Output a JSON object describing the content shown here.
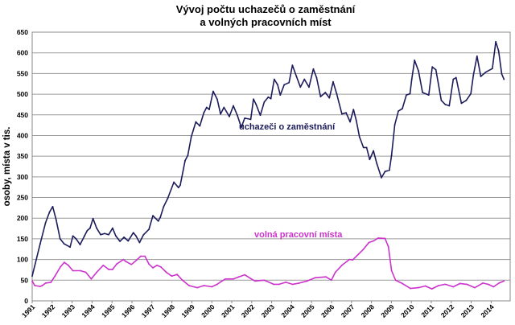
{
  "chart_data": {
    "type": "line",
    "title": [
      "Vývoj počtu uchazečů o zaměstnání",
      "a volných pracovních míst"
    ],
    "xlabel": "",
    "ylabel": "osoby, místa v tis.",
    "ylim": [
      0,
      650
    ],
    "yticks": [
      0,
      50,
      100,
      150,
      200,
      250,
      300,
      350,
      400,
      450,
      500,
      550,
      600,
      650
    ],
    "xticks": [
      "1991",
      "1992",
      "1993",
      "1994",
      "1995",
      "1996",
      "1997",
      "1998",
      "1999",
      "2000",
      "2001",
      "2002",
      "2003",
      "2004",
      "2005",
      "2006",
      "2007",
      "2008",
      "2009",
      "2010",
      "2011",
      "2012",
      "2013",
      "2014"
    ],
    "grid": "horizontal",
    "legend": "inline labels",
    "series": [
      {
        "name": "uchazeči o zaměstnání",
        "color": "#1c1c5c",
        "points": [
          [
            1991.0,
            60
          ],
          [
            1991.4,
            138
          ],
          [
            1991.67,
            189
          ],
          [
            1991.87,
            215
          ],
          [
            1992.03,
            228
          ],
          [
            1992.2,
            196
          ],
          [
            1992.4,
            150
          ],
          [
            1992.6,
            138
          ],
          [
            1992.9,
            130
          ],
          [
            1993.04,
            157
          ],
          [
            1993.2,
            150
          ],
          [
            1993.4,
            136
          ],
          [
            1993.62,
            157
          ],
          [
            1993.76,
            170
          ],
          [
            1993.9,
            176
          ],
          [
            1994.05,
            199
          ],
          [
            1994.23,
            176
          ],
          [
            1994.43,
            160
          ],
          [
            1994.63,
            163
          ],
          [
            1994.83,
            160
          ],
          [
            1995.03,
            176
          ],
          [
            1995.19,
            157
          ],
          [
            1995.4,
            144
          ],
          [
            1995.6,
            154
          ],
          [
            1995.81,
            145
          ],
          [
            1996.07,
            165
          ],
          [
            1996.2,
            157
          ],
          [
            1996.38,
            141
          ],
          [
            1996.58,
            160
          ],
          [
            1996.85,
            173
          ],
          [
            1997.05,
            206
          ],
          [
            1997.32,
            193
          ],
          [
            1997.42,
            202
          ],
          [
            1997.59,
            228
          ],
          [
            1997.79,
            248
          ],
          [
            1998.1,
            287
          ],
          [
            1998.33,
            274
          ],
          [
            1998.42,
            280
          ],
          [
            1998.66,
            339
          ],
          [
            1998.8,
            352
          ],
          [
            1998.97,
            397
          ],
          [
            1999.2,
            433
          ],
          [
            1999.4,
            423
          ],
          [
            1999.6,
            455
          ],
          [
            1999.74,
            468
          ],
          [
            1999.87,
            463
          ],
          [
            2000.07,
            507
          ],
          [
            2000.27,
            488
          ],
          [
            2000.44,
            452
          ],
          [
            2000.61,
            468
          ],
          [
            2000.88,
            446
          ],
          [
            2001.08,
            472
          ],
          [
            2001.28,
            449
          ],
          [
            2001.48,
            420
          ],
          [
            2001.65,
            442
          ],
          [
            2001.95,
            439
          ],
          [
            2002.09,
            488
          ],
          [
            2002.22,
            475
          ],
          [
            2002.43,
            449
          ],
          [
            2002.63,
            481
          ],
          [
            2002.83,
            493
          ],
          [
            2002.96,
            489
          ],
          [
            2003.13,
            536
          ],
          [
            2003.3,
            523
          ],
          [
            2003.43,
            498
          ],
          [
            2003.63,
            523
          ],
          [
            2003.87,
            528
          ],
          [
            2004.04,
            570
          ],
          [
            2004.24,
            543
          ],
          [
            2004.44,
            517
          ],
          [
            2004.64,
            536
          ],
          [
            2004.87,
            517
          ],
          [
            2005.09,
            561
          ],
          [
            2005.25,
            540
          ],
          [
            2005.45,
            494
          ],
          [
            2005.69,
            504
          ],
          [
            2005.89,
            491
          ],
          [
            2006.08,
            530
          ],
          [
            2006.26,
            501
          ],
          [
            2006.52,
            452
          ],
          [
            2006.73,
            455
          ],
          [
            2006.93,
            433
          ],
          [
            2007.1,
            463
          ],
          [
            2007.24,
            436
          ],
          [
            2007.4,
            397
          ],
          [
            2007.6,
            371
          ],
          [
            2007.76,
            371
          ],
          [
            2007.91,
            342
          ],
          [
            2008.1,
            363
          ],
          [
            2008.27,
            332
          ],
          [
            2008.5,
            298
          ],
          [
            2008.68,
            313
          ],
          [
            2008.9,
            316
          ],
          [
            2009.01,
            352
          ],
          [
            2009.17,
            426
          ],
          [
            2009.35,
            459
          ],
          [
            2009.55,
            465
          ],
          [
            2009.75,
            498
          ],
          [
            2009.93,
            501
          ],
          [
            2010.02,
            536
          ],
          [
            2010.16,
            582
          ],
          [
            2010.36,
            556
          ],
          [
            2010.56,
            504
          ],
          [
            2010.87,
            498
          ],
          [
            2011.05,
            566
          ],
          [
            2011.23,
            559
          ],
          [
            2011.5,
            485
          ],
          [
            2011.7,
            475
          ],
          [
            2011.9,
            472
          ],
          [
            2012.1,
            536
          ],
          [
            2012.24,
            540
          ],
          [
            2012.51,
            478
          ],
          [
            2012.75,
            485
          ],
          [
            2012.98,
            501
          ],
          [
            2013.11,
            546
          ],
          [
            2013.29,
            592
          ],
          [
            2013.48,
            543
          ],
          [
            2013.72,
            553
          ],
          [
            2014.06,
            562
          ],
          [
            2014.23,
            627
          ],
          [
            2014.37,
            605
          ],
          [
            2014.53,
            549
          ],
          [
            2014.64,
            536
          ]
        ]
      },
      {
        "name": "volná pracovní místa",
        "color": "#cc33cc",
        "points": [
          [
            1991.0,
            48
          ],
          [
            1991.13,
            37
          ],
          [
            1991.4,
            35
          ],
          [
            1991.51,
            37
          ],
          [
            1991.67,
            43
          ],
          [
            1991.94,
            45
          ],
          [
            1992.14,
            60
          ],
          [
            1992.41,
            82
          ],
          [
            1992.61,
            93
          ],
          [
            1992.81,
            86
          ],
          [
            1993.04,
            73
          ],
          [
            1993.42,
            73
          ],
          [
            1993.69,
            69
          ],
          [
            1993.96,
            53
          ],
          [
            1994.23,
            69
          ],
          [
            1994.56,
            86
          ],
          [
            1994.83,
            76
          ],
          [
            1995.03,
            76
          ],
          [
            1995.23,
            89
          ],
          [
            1995.57,
            100
          ],
          [
            1995.7,
            95
          ],
          [
            1995.97,
            88
          ],
          [
            1996.24,
            99
          ],
          [
            1996.44,
            108
          ],
          [
            1996.65,
            108
          ],
          [
            1996.85,
            89
          ],
          [
            1997.05,
            80
          ],
          [
            1997.25,
            86
          ],
          [
            1997.45,
            82
          ],
          [
            1997.72,
            69
          ],
          [
            1997.99,
            60
          ],
          [
            1998.26,
            64
          ],
          [
            1998.53,
            50
          ],
          [
            1998.86,
            37
          ],
          [
            1999.27,
            32
          ],
          [
            1999.6,
            37
          ],
          [
            2000.0,
            34
          ],
          [
            2000.27,
            40
          ],
          [
            2000.48,
            47
          ],
          [
            2000.68,
            53
          ],
          [
            2001.08,
            53
          ],
          [
            2001.35,
            58
          ],
          [
            2001.65,
            63
          ],
          [
            2001.95,
            54
          ],
          [
            2002.16,
            48
          ],
          [
            2002.63,
            50
          ],
          [
            2003.1,
            40
          ],
          [
            2003.37,
            40
          ],
          [
            2003.71,
            45
          ],
          [
            2004.04,
            40
          ],
          [
            2004.38,
            43
          ],
          [
            2004.78,
            48
          ],
          [
            2005.18,
            56
          ],
          [
            2005.72,
            58
          ],
          [
            2005.99,
            50
          ],
          [
            2006.19,
            69
          ],
          [
            2006.52,
            86
          ],
          [
            2006.89,
            100
          ],
          [
            2007.06,
            99
          ],
          [
            2007.33,
            112
          ],
          [
            2007.6,
            125
          ],
          [
            2007.87,
            141
          ],
          [
            2008.1,
            145
          ],
          [
            2008.34,
            152
          ],
          [
            2008.68,
            151
          ],
          [
            2008.85,
            131
          ],
          [
            2009.01,
            73
          ],
          [
            2009.21,
            50
          ],
          [
            2009.55,
            42
          ],
          [
            2009.95,
            30
          ],
          [
            2010.36,
            32
          ],
          [
            2010.7,
            36
          ],
          [
            2011.03,
            29
          ],
          [
            2011.36,
            37
          ],
          [
            2011.7,
            40
          ],
          [
            2012.1,
            34
          ],
          [
            2012.44,
            42
          ],
          [
            2012.78,
            40
          ],
          [
            2013.18,
            32
          ],
          [
            2013.58,
            43
          ],
          [
            2013.85,
            40
          ],
          [
            2014.12,
            34
          ],
          [
            2014.39,
            43
          ],
          [
            2014.64,
            48
          ]
        ]
      }
    ]
  }
}
